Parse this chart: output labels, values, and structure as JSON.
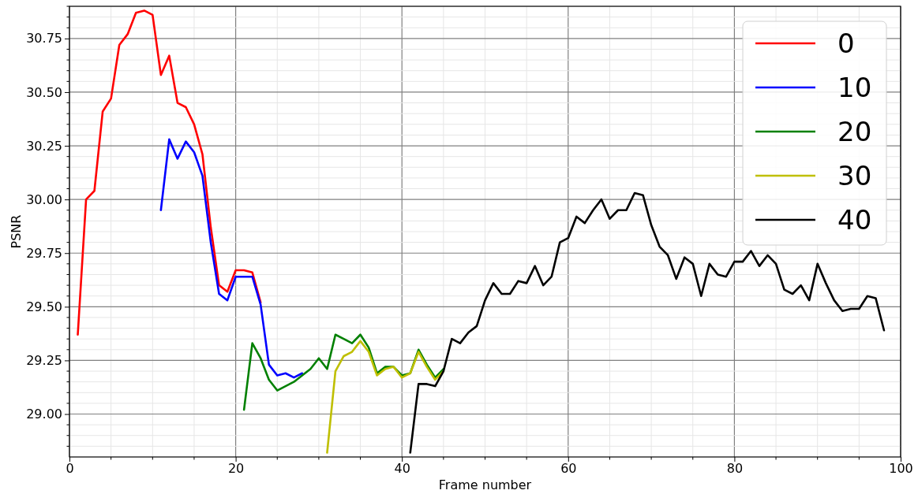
{
  "chart_data": {
    "type": "line",
    "xlabel": "Frame number",
    "ylabel": "PSNR",
    "xlim": [
      0,
      100
    ],
    "xticks": [
      0,
      20,
      40,
      60,
      80,
      100
    ],
    "ylim": [
      28.8,
      30.9
    ],
    "yticks": [
      {
        "value": 29,
        "label": "29.00"
      },
      {
        "value": 29.25,
        "label": "29.25"
      },
      {
        "value": 29.5,
        "label": "29.50"
      },
      {
        "value": 29.75,
        "label": "29.75"
      },
      {
        "value": 30,
        "label": "30.00"
      },
      {
        "value": 30.25,
        "label": "30.25"
      },
      {
        "value": 30.5,
        "label": "30.50"
      },
      {
        "value": 30.75,
        "label": "30.75"
      }
    ],
    "grid": true,
    "legend": "top right",
    "line_style": "solid",
    "series": [
      {
        "name": "0",
        "color": "#ff0000",
        "x": [
          1,
          2,
          3,
          4,
          5,
          6,
          7,
          8,
          9,
          10,
          11,
          12,
          13,
          14,
          15,
          16,
          17,
          18,
          19,
          20,
          21,
          22,
          23
        ],
        "values": [
          29.37,
          30.0,
          30.04,
          30.41,
          30.47,
          30.72,
          30.77,
          30.87,
          30.88,
          30.86,
          30.58,
          30.67,
          30.45,
          30.43,
          30.35,
          30.21,
          29.87,
          29.6,
          29.57,
          29.67,
          29.67,
          29.66,
          29.52
        ]
      },
      {
        "name": "10",
        "color": "#0000ff",
        "x": [
          11,
          12,
          13,
          14,
          15,
          16,
          17,
          18,
          19,
          20,
          21,
          22,
          23,
          24,
          25,
          26,
          27,
          28
        ],
        "values": [
          29.95,
          30.28,
          30.19,
          30.27,
          30.22,
          30.11,
          29.8,
          29.56,
          29.53,
          29.64,
          29.64,
          29.64,
          29.51,
          29.23,
          29.18,
          29.19,
          29.17,
          29.19
        ]
      },
      {
        "name": "20",
        "color": "#008000",
        "x": [
          21,
          22,
          23,
          24,
          25,
          26,
          27,
          28,
          29,
          30,
          31,
          32,
          33,
          34,
          35,
          36,
          37,
          38,
          39,
          40,
          41,
          42,
          43,
          44,
          45
        ],
        "values": [
          29.02,
          29.33,
          29.26,
          29.16,
          29.11,
          29.13,
          29.15,
          29.18,
          29.21,
          29.26,
          29.21,
          29.37,
          29.35,
          29.33,
          29.37,
          29.31,
          29.19,
          29.22,
          29.22,
          29.18,
          29.19,
          29.3,
          29.23,
          29.17,
          29.21
        ]
      },
      {
        "name": "30",
        "color": "#bfbf00",
        "x": [
          31,
          32,
          33,
          34,
          35,
          36,
          37,
          38,
          39,
          40,
          41,
          42,
          43,
          44,
          45
        ],
        "values": [
          28.82,
          29.2,
          29.27,
          29.29,
          29.34,
          29.29,
          29.18,
          29.21,
          29.22,
          29.17,
          29.19,
          29.29,
          29.22,
          29.16,
          29.2
        ]
      },
      {
        "name": "40",
        "color": "#000000",
        "x": [
          41,
          42,
          43,
          44,
          45,
          46,
          47,
          48,
          49,
          50,
          51,
          52,
          53,
          54,
          55,
          56,
          57,
          58,
          59,
          60,
          61,
          62,
          63,
          64,
          65,
          66,
          67,
          68,
          69,
          70,
          71,
          72,
          73,
          74,
          75,
          76,
          77,
          78,
          79,
          80,
          81,
          82,
          83,
          84,
          85,
          86,
          87,
          88,
          89,
          90,
          91,
          92,
          93,
          94,
          95,
          96,
          97,
          98
        ],
        "values": [
          28.82,
          29.14,
          29.14,
          29.13,
          29.2,
          29.35,
          29.33,
          29.38,
          29.41,
          29.53,
          29.61,
          29.56,
          29.56,
          29.62,
          29.61,
          29.69,
          29.6,
          29.64,
          29.8,
          29.82,
          29.92,
          29.89,
          29.95,
          30.0,
          29.91,
          29.95,
          29.95,
          30.03,
          30.02,
          29.88,
          29.78,
          29.74,
          29.63,
          29.73,
          29.7,
          29.55,
          29.7,
          29.65,
          29.64,
          29.71,
          29.71,
          29.76,
          29.69,
          29.74,
          29.7,
          29.58,
          29.56,
          29.6,
          29.53,
          29.7,
          29.61,
          29.53,
          29.48,
          29.49,
          29.49,
          29.55,
          29.54,
          29.39
        ]
      }
    ]
  }
}
